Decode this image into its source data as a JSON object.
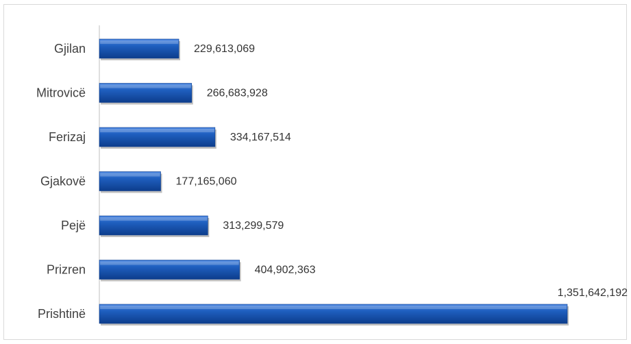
{
  "chart_data": {
    "type": "bar",
    "orientation": "horizontal",
    "categories": [
      "Gjilan",
      "Mitrovicë",
      "Ferizaj",
      "Gjakovë",
      "Pejë",
      "Prizren",
      "Prishtinë"
    ],
    "values": [
      229613069,
      266683928,
      334167514,
      177165060,
      313299579,
      404902363,
      1351642192
    ],
    "value_labels": [
      "229,613,069",
      "266,683,928",
      "334,167,514",
      "177,165,060",
      "313,299,579",
      "404,902,363",
      "1,351,642,192"
    ],
    "title": "",
    "xlabel": "",
    "ylabel": "",
    "grid": false,
    "legend": "none",
    "bar_color": "#1f5fbf",
    "bar_color_light": "#4a86e0",
    "bar_color_dark": "#0d3d8c"
  }
}
